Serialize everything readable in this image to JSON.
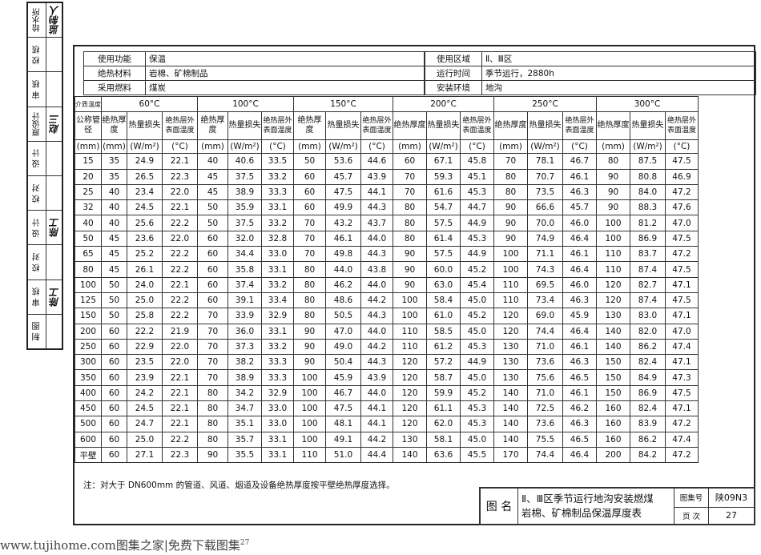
{
  "sidebar": [
    {
      "label": "给水所",
      "sig": "监制人"
    },
    {
      "label": "校 核",
      "sig": ""
    },
    {
      "label": "审 核",
      "sig": ""
    },
    {
      "label": "原设计",
      "sig": "赵三"
    },
    {
      "label": "设 计",
      "sig": ""
    },
    {
      "label": "校 对",
      "sig": ""
    },
    {
      "label": "设 计",
      "sig": "陈工"
    },
    {
      "label": "校 对",
      "sig": ""
    },
    {
      "label": "审 核",
      "sig": "陈工"
    },
    {
      "label": "制 图",
      "sig": ""
    }
  ],
  "info": {
    "use_label": "使用功能",
    "use_value": "保温",
    "material_label": "绝热材料",
    "material_value": "岩棉、矿棉制品",
    "fuel_label": "采用燃料",
    "fuel_value": "煤炭",
    "region_label": "使用区域",
    "region_value": "Ⅱ、Ⅲ区",
    "time_label": "运行时间",
    "time_value": "季节运行，2880h",
    "env_label": "安装环境",
    "env_value": "地沟"
  },
  "table": {
    "corner": "介质温度",
    "temps": [
      "60°C",
      "100°C",
      "150°C",
      "200°C",
      "250°C",
      "300°C"
    ],
    "nominal": "公称管径",
    "sub": [
      "绝热厚度",
      "热量损失",
      "绝热层外表面温度"
    ],
    "units": [
      "(mm)",
      "(mm)",
      "(W/m²)",
      "(°C)"
    ],
    "rows": [
      [
        "15",
        "35",
        "24.9",
        "22.1",
        "40",
        "40.6",
        "33.5",
        "50",
        "53.6",
        "44.6",
        "60",
        "67.1",
        "45.8",
        "70",
        "78.1",
        "46.7",
        "80",
        "87.5",
        "47.5"
      ],
      [
        "20",
        "35",
        "26.5",
        "22.3",
        "45",
        "37.5",
        "33.2",
        "60",
        "45.7",
        "43.9",
        "70",
        "59.3",
        "45.1",
        "80",
        "70.7",
        "46.1",
        "90",
        "80.8",
        "46.9"
      ],
      [
        "25",
        "40",
        "23.4",
        "22.0",
        "45",
        "38.9",
        "33.3",
        "60",
        "47.5",
        "44.1",
        "70",
        "61.6",
        "45.3",
        "80",
        "73.5",
        "46.3",
        "90",
        "84.0",
        "47.2"
      ],
      [
        "32",
        "40",
        "24.5",
        "22.1",
        "50",
        "35.9",
        "33.1",
        "60",
        "49.9",
        "44.3",
        "80",
        "54.7",
        "44.7",
        "90",
        "66.6",
        "45.7",
        "90",
        "88.3",
        "47.6"
      ],
      [
        "40",
        "40",
        "25.6",
        "22.2",
        "50",
        "37.5",
        "33.2",
        "70",
        "43.2",
        "43.7",
        "80",
        "57.5",
        "44.9",
        "90",
        "70.0",
        "46.0",
        "100",
        "81.2",
        "47.0"
      ],
      [
        "50",
        "45",
        "23.6",
        "22.0",
        "60",
        "32.0",
        "32.8",
        "70",
        "46.1",
        "44.0",
        "80",
        "61.4",
        "45.3",
        "90",
        "74.9",
        "46.4",
        "100",
        "86.9",
        "47.5"
      ],
      [
        "65",
        "45",
        "25.2",
        "22.2",
        "60",
        "34.4",
        "33.0",
        "70",
        "49.8",
        "44.3",
        "90",
        "57.5",
        "44.9",
        "100",
        "71.1",
        "46.1",
        "110",
        "83.7",
        "47.2"
      ],
      [
        "80",
        "45",
        "26.1",
        "22.2",
        "60",
        "35.8",
        "33.1",
        "80",
        "44.0",
        "43.8",
        "90",
        "60.0",
        "45.2",
        "100",
        "74.3",
        "46.4",
        "110",
        "87.4",
        "47.5"
      ],
      [
        "100",
        "50",
        "24.0",
        "22.1",
        "60",
        "37.4",
        "33.2",
        "80",
        "46.2",
        "44.0",
        "90",
        "63.0",
        "45.4",
        "110",
        "69.5",
        "46.0",
        "120",
        "82.7",
        "47.1"
      ],
      [
        "125",
        "50",
        "25.0",
        "22.2",
        "60",
        "39.1",
        "33.4",
        "80",
        "48.6",
        "44.2",
        "100",
        "58.4",
        "45.0",
        "110",
        "73.4",
        "46.3",
        "120",
        "87.4",
        "47.5"
      ],
      [
        "150",
        "50",
        "25.8",
        "22.2",
        "70",
        "33.9",
        "32.9",
        "80",
        "50.5",
        "44.3",
        "100",
        "61.0",
        "45.2",
        "120",
        "69.0",
        "45.9",
        "130",
        "83.0",
        "47.1"
      ],
      [
        "200",
        "60",
        "22.2",
        "21.9",
        "70",
        "36.0",
        "33.1",
        "90",
        "47.0",
        "44.0",
        "110",
        "58.5",
        "45.0",
        "120",
        "74.4",
        "46.4",
        "140",
        "82.0",
        "47.0"
      ],
      [
        "250",
        "60",
        "22.9",
        "22.0",
        "70",
        "37.3",
        "33.2",
        "90",
        "49.0",
        "44.2",
        "110",
        "61.2",
        "45.3",
        "130",
        "71.0",
        "46.1",
        "140",
        "86.2",
        "47.4"
      ],
      [
        "300",
        "60",
        "23.5",
        "22.0",
        "70",
        "38.2",
        "33.3",
        "90",
        "50.4",
        "44.3",
        "120",
        "57.2",
        "44.9",
        "130",
        "73.6",
        "46.3",
        "150",
        "82.4",
        "47.1"
      ],
      [
        "350",
        "60",
        "23.9",
        "22.1",
        "70",
        "38.9",
        "33.3",
        "100",
        "45.9",
        "43.9",
        "120",
        "58.7",
        "45.0",
        "130",
        "75.6",
        "46.5",
        "150",
        "84.9",
        "47.3"
      ],
      [
        "400",
        "60",
        "24.2",
        "22.1",
        "80",
        "34.2",
        "32.9",
        "100",
        "46.7",
        "44.0",
        "120",
        "59.9",
        "45.2",
        "140",
        "71.0",
        "46.1",
        "150",
        "86.9",
        "47.5"
      ],
      [
        "450",
        "60",
        "24.5",
        "22.1",
        "80",
        "34.7",
        "33.0",
        "100",
        "47.5",
        "44.1",
        "120",
        "61.1",
        "45.3",
        "140",
        "72.5",
        "46.2",
        "160",
        "82.4",
        "47.1"
      ],
      [
        "500",
        "60",
        "24.7",
        "22.1",
        "80",
        "35.1",
        "33.0",
        "100",
        "48.1",
        "44.1",
        "120",
        "62.0",
        "45.3",
        "140",
        "73.6",
        "46.3",
        "160",
        "83.9",
        "47.2"
      ],
      [
        "600",
        "60",
        "25.0",
        "22.2",
        "80",
        "35.7",
        "33.1",
        "100",
        "49.1",
        "44.2",
        "130",
        "58.1",
        "45.0",
        "140",
        "75.5",
        "46.5",
        "160",
        "86.2",
        "47.4"
      ],
      [
        "平壁",
        "60",
        "27.1",
        "22.3",
        "90",
        "35.5",
        "33.1",
        "110",
        "51.0",
        "44.4",
        "140",
        "63.6",
        "45.5",
        "170",
        "74.4",
        "46.4",
        "200",
        "84.2",
        "47.2"
      ]
    ]
  },
  "note": "注：对大于 DN600mm 的管道、风道、烟道及设备绝热厚度按平壁绝热厚度选择。",
  "titleblock": {
    "name_label": "图 名",
    "title_line1": "Ⅱ、Ⅲ区季节运行地沟安装燃煤",
    "title_line2": "岩棉、矿棉制品保温厚度表",
    "atlas_label": "图集号",
    "atlas_value": "陕09N3",
    "page_label": "页 次",
    "page_value": "27"
  },
  "footer": "www.tujihome.com图集之家|免费下载图集",
  "footer_page": "27"
}
